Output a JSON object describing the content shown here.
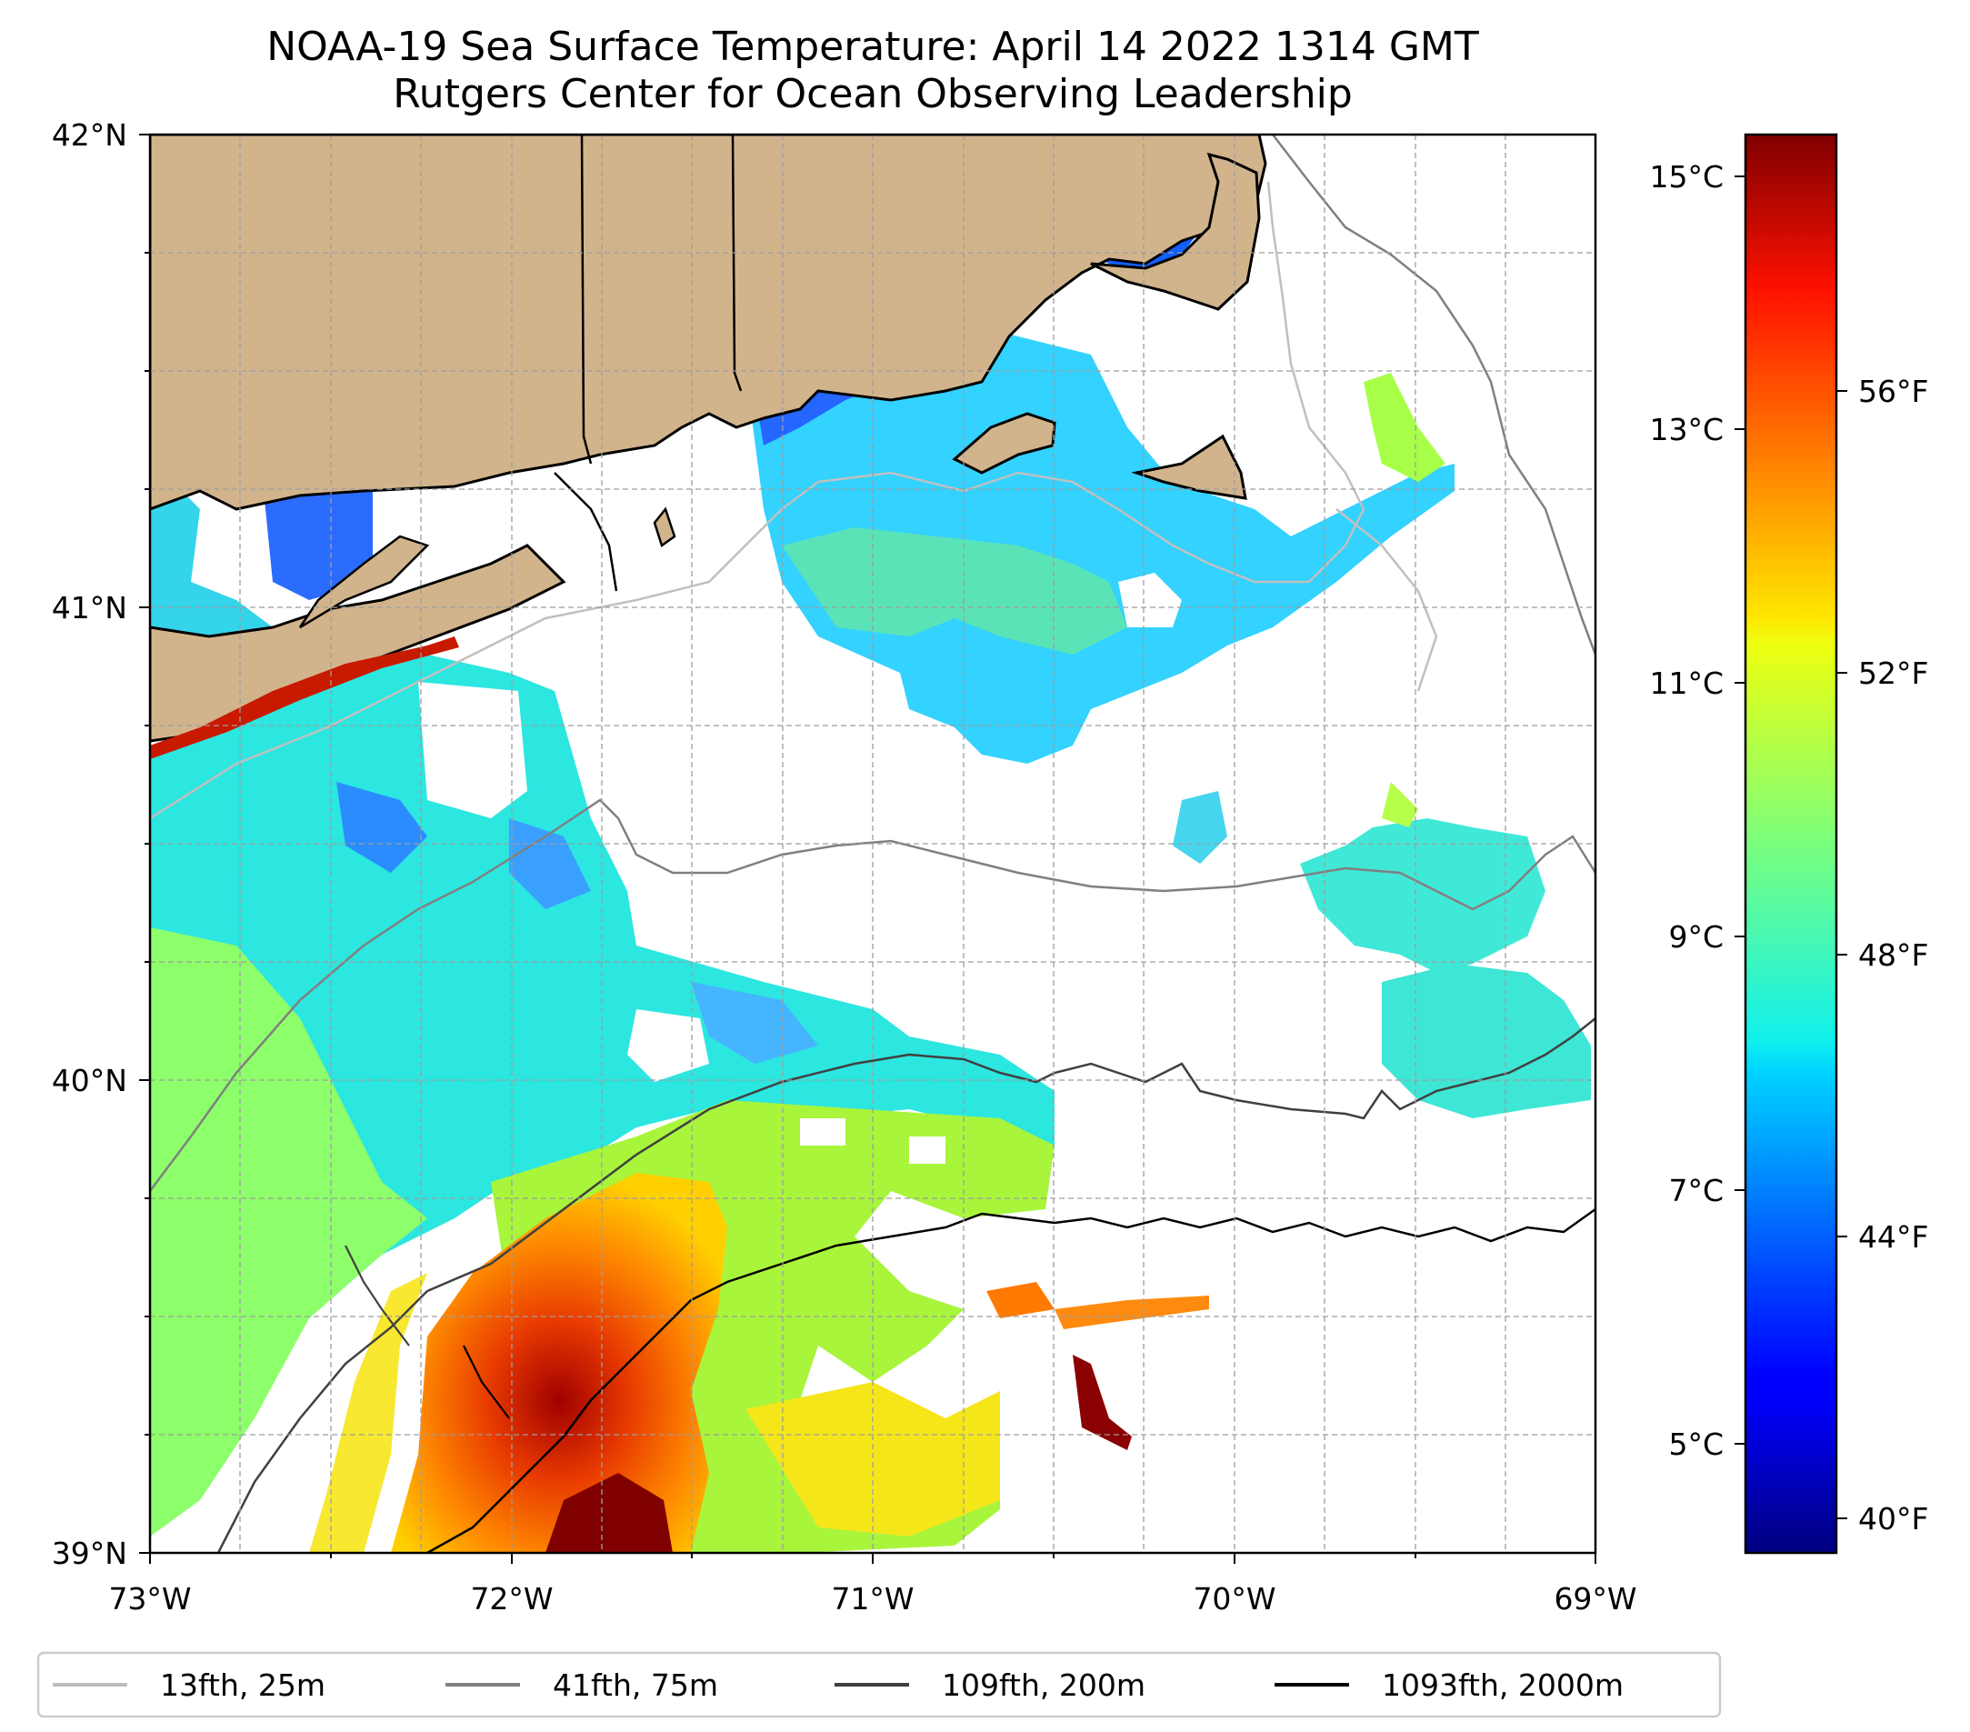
{
  "title": {
    "line1": "NOAA-19 Sea Surface Temperature: April 14 2022 1314 GMT",
    "line2": "Rutgers Center for Ocean Observing Leadership"
  },
  "map": {
    "lon_range": [
      -73,
      -69
    ],
    "lat_range": [
      39,
      42
    ],
    "lon_ticks": [
      "73°W",
      "72°W",
      "71°W",
      "70°W",
      "69°W"
    ],
    "lat_ticks": [
      "42°N",
      "41°N",
      "40°N",
      "39°N"
    ],
    "land_color": "#d2b48c",
    "missing_color": "#ffffff"
  },
  "colorbar": {
    "colormap": "jet",
    "range_celsius": [
      4.3,
      15.3
    ],
    "celsius_ticks": [
      "15°C",
      "13°C",
      "11°C",
      "9°C",
      "7°C",
      "5°C"
    ],
    "fahrenheit_ticks": [
      "56°F",
      "52°F",
      "48°F",
      "44°F",
      "40°F"
    ]
  },
  "legend": {
    "items": [
      {
        "label": "13fth, 25m",
        "color": "#bdbdbd"
      },
      {
        "label": "41fth, 75m",
        "color": "#808080"
      },
      {
        "label": "109fth, 200m",
        "color": "#404040"
      },
      {
        "label": "1093fth, 2000m",
        "color": "#000000"
      }
    ]
  }
}
